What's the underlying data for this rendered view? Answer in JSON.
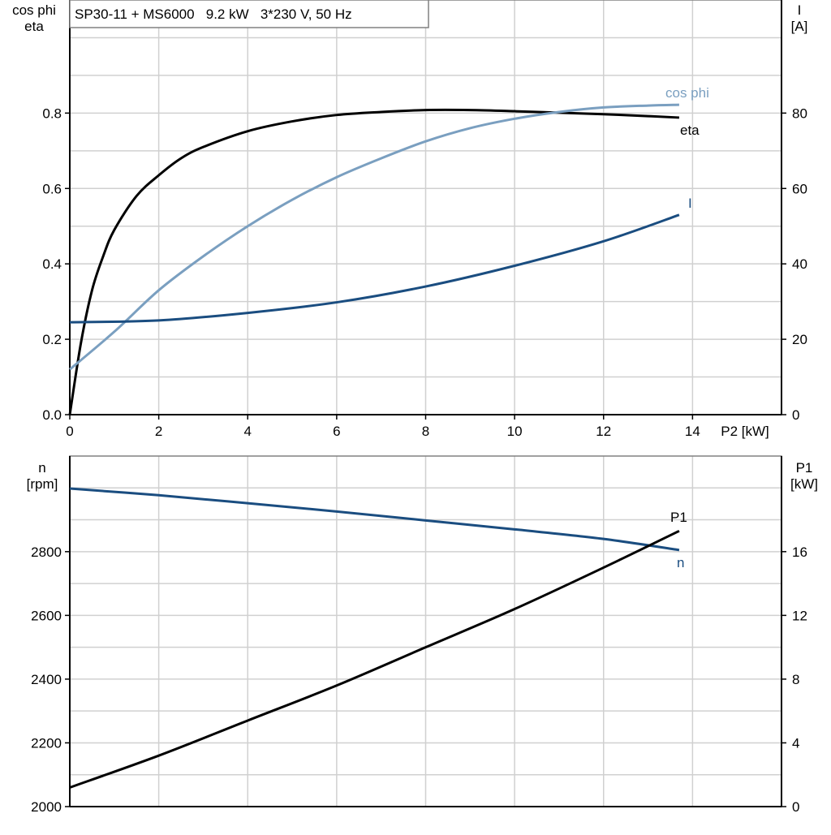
{
  "title": "SP30-11 + MS6000   9.2 kW   3*230 V, 50 Hz",
  "chart_data": [
    {
      "type": "line",
      "xlabel": "P2 [kW]",
      "xlim": [
        0,
        16
      ],
      "xticks": [
        0,
        2,
        4,
        6,
        8,
        10,
        12,
        14
      ],
      "ylabel_left": [
        "cos phi",
        "eta"
      ],
      "ylim_left": [
        0,
        1.1
      ],
      "yticks_left": [
        0.0,
        0.2,
        0.4,
        0.6,
        0.8
      ],
      "ylabel_right": [
        "I",
        "[A]"
      ],
      "ylim_right": [
        0,
        110
      ],
      "yticks_right": [
        0,
        20,
        40,
        60,
        80
      ],
      "grid": true,
      "series": [
        {
          "name": "eta",
          "axis": "left",
          "color": "#000000",
          "x": [
            0,
            0.25,
            0.5,
            0.75,
            1,
            1.5,
            2,
            2.5,
            3,
            4,
            5,
            6,
            7,
            8,
            9,
            10,
            11,
            12,
            13,
            13.7
          ],
          "y": [
            0,
            0.19,
            0.33,
            0.42,
            0.49,
            0.58,
            0.635,
            0.68,
            0.71,
            0.752,
            0.778,
            0.795,
            0.803,
            0.808,
            0.808,
            0.805,
            0.801,
            0.797,
            0.792,
            0.788
          ]
        },
        {
          "name": "cos phi",
          "axis": "left",
          "color": "#7a9fc0",
          "x": [
            0,
            1,
            2,
            3,
            4,
            5,
            6,
            7,
            8,
            9,
            10,
            11,
            12,
            13,
            13.7
          ],
          "y": [
            0.12,
            0.22,
            0.33,
            0.42,
            0.5,
            0.57,
            0.63,
            0.68,
            0.725,
            0.76,
            0.785,
            0.803,
            0.815,
            0.82,
            0.822
          ]
        },
        {
          "name": "I",
          "axis": "right",
          "color": "#1a4d80",
          "x": [
            0,
            2,
            4,
            6,
            8,
            10,
            12,
            13.7
          ],
          "y": [
            24.5,
            25,
            27,
            29.8,
            34,
            39.5,
            46,
            53
          ]
        }
      ]
    },
    {
      "type": "line",
      "xlim": [
        0,
        16
      ],
      "ylabel_left": [
        "n",
        "[rpm]"
      ],
      "ylim_left": [
        2000,
        3100
      ],
      "yticks_left": [
        2000,
        2200,
        2400,
        2600,
        2800
      ],
      "ylabel_right": [
        "P1",
        "[kW]"
      ],
      "ylim_right": [
        0,
        22
      ],
      "yticks_right": [
        0,
        4,
        8,
        12,
        16
      ],
      "grid": true,
      "series": [
        {
          "name": "n",
          "axis": "left",
          "color": "#1a4d80",
          "x": [
            0,
            2,
            4,
            6,
            8,
            10,
            12,
            13.7
          ],
          "y": [
            2998,
            2977,
            2952,
            2926,
            2898,
            2870,
            2840,
            2805
          ]
        },
        {
          "name": "P1",
          "axis": "right",
          "color": "#000000",
          "x": [
            0,
            2,
            4,
            6,
            8,
            10,
            12,
            13.7
          ],
          "y": [
            1.2,
            3.2,
            5.4,
            7.6,
            10.0,
            12.4,
            15.0,
            17.3
          ]
        }
      ]
    }
  ]
}
